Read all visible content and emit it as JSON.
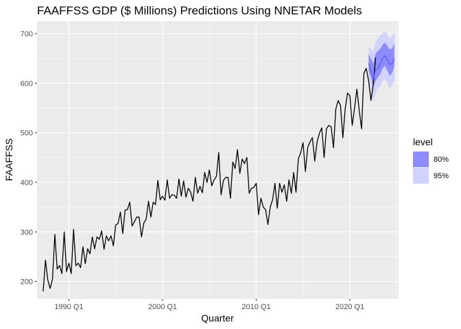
{
  "chart_data": {
    "type": "line",
    "title": "FAAFFSS GDP ($ Millions) Predictions Using NNETAR Models",
    "xlabel": "Quarter",
    "ylabel": "FAAFFSS",
    "xlim": [
      1986.6,
      2025.2
    ],
    "ylim": [
      165,
      725
    ],
    "x_ticks": [
      1990,
      2000,
      2010,
      2020
    ],
    "x_tick_labels": [
      "1990 Q1",
      "2000 Q1",
      "2010 Q1",
      "2020 Q1"
    ],
    "y_ticks": [
      200,
      300,
      400,
      500,
      600,
      700
    ],
    "grid": true,
    "legend": {
      "title": "level",
      "placement": "right",
      "entries": [
        "80%",
        "95%"
      ]
    },
    "colors": {
      "panel": "#ebebeb",
      "grid": "#ffffff",
      "line": "#000000",
      "forecast_line": "#5a5aff",
      "band80": "#8c8cff",
      "band95": "#d2d2ff"
    },
    "series": [
      {
        "start": 1987.25,
        "step": 0.25,
        "values": [
          180,
          243,
          203,
          186,
          205,
          295,
          225,
          232,
          216,
          300,
          220,
          237,
          216,
          305,
          232,
          237,
          228,
          270,
          236,
          266,
          256,
          290,
          266,
          290,
          285,
          302,
          265,
          292,
          282,
          292,
          272,
          314,
          317,
          340,
          297,
          344,
          345,
          360,
          312,
          321,
          330,
          330,
          290,
          318,
          326,
          362,
          330,
          360,
          355,
          404,
          365,
          372,
          364,
          405,
          368,
          375,
          374,
          368,
          407,
          372,
          403,
          370,
          388,
          380,
          362,
          410,
          378,
          392,
          379,
          420,
          400,
          425,
          393,
          405,
          412,
          460,
          375,
          404,
          410,
          410,
          368,
          441,
          428,
          466,
          418,
          447,
          438,
          450,
          378,
          388,
          390,
          398,
          335,
          368,
          350,
          345,
          315,
          350,
          365,
          398,
          348,
          398,
          380,
          395,
          362,
          405,
          378,
          420,
          380,
          448,
          460,
          480,
          422,
          470,
          482,
          490,
          443,
          482,
          499,
          510,
          450,
          508,
          515,
          512,
          470,
          548,
          565,
          555,
          490,
          548,
          580,
          575,
          515,
          550,
          588,
          545,
          508,
          620,
          630,
          605,
          565,
          598,
          652
        ]
      }
    ],
    "forecast": {
      "start": 2022.0,
      "step": 0.25,
      "mean": [
        640,
        625,
        608,
        628,
        630,
        640,
        650,
        655,
        648,
        638,
        640,
        650
      ],
      "lo80": [
        625,
        612,
        592,
        605,
        612,
        618,
        630,
        635,
        625,
        615,
        620,
        635
      ],
      "hi80": [
        658,
        650,
        640,
        660,
        665,
        670,
        678,
        682,
        676,
        668,
        670,
        680
      ],
      "lo95": [
        605,
        590,
        565,
        580,
        590,
        595,
        605,
        608,
        600,
        590,
        595,
        605
      ],
      "hi95": [
        672,
        670,
        662,
        685,
        690,
        698,
        700,
        705,
        698,
        690,
        695,
        705
      ]
    }
  }
}
